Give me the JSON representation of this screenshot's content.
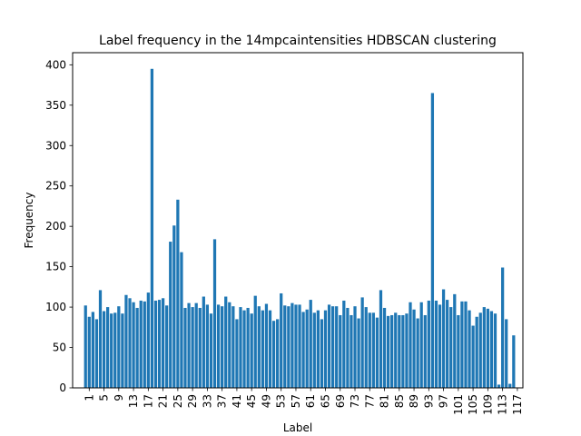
{
  "chart_data": {
    "type": "bar",
    "title": "Label frequency in the 14mpcaintensities HDBSCAN clustering",
    "xlabel": "Label",
    "ylabel": "Frequency",
    "bar_color": "#1f77b4",
    "categories": [
      0,
      1,
      2,
      3,
      4,
      5,
      6,
      7,
      8,
      9,
      10,
      11,
      12,
      13,
      14,
      15,
      16,
      17,
      18,
      19,
      20,
      21,
      22,
      23,
      24,
      25,
      26,
      27,
      28,
      29,
      30,
      31,
      32,
      33,
      34,
      35,
      36,
      37,
      38,
      39,
      40,
      41,
      42,
      43,
      44,
      45,
      46,
      47,
      48,
      49,
      50,
      51,
      52,
      53,
      54,
      55,
      56,
      57,
      58,
      59,
      60,
      61,
      62,
      63,
      64,
      65,
      66,
      67,
      68,
      69,
      70,
      71,
      72,
      73,
      74,
      75,
      76,
      77,
      78,
      79,
      80,
      81,
      82,
      83,
      84,
      85,
      86,
      87,
      88,
      89,
      90,
      91,
      92,
      93,
      94,
      95,
      96,
      97,
      98,
      99,
      100,
      101,
      102,
      103,
      104,
      105,
      106,
      107,
      108,
      109,
      110,
      111,
      112,
      113,
      114,
      115,
      116,
      117,
      118
    ],
    "values": [
      102,
      88,
      94,
      85,
      121,
      95,
      100,
      92,
      93,
      101,
      92,
      115,
      111,
      106,
      99,
      108,
      107,
      118,
      395,
      108,
      109,
      111,
      102,
      181,
      201,
      233,
      168,
      99,
      105,
      100,
      105,
      99,
      113,
      103,
      92,
      184,
      103,
      101,
      113,
      106,
      101,
      85,
      100,
      96,
      99,
      92,
      114,
      101,
      96,
      104,
      96,
      83,
      85,
      117,
      102,
      101,
      105,
      103,
      103,
      94,
      97,
      109,
      93,
      96,
      85,
      96,
      103,
      101,
      101,
      90,
      108,
      99,
      90,
      101,
      86,
      112,
      100,
      93,
      93,
      87,
      121,
      99,
      89,
      90,
      93,
      90,
      90,
      92,
      106,
      97,
      86,
      106,
      90,
      108,
      365,
      108,
      103,
      122,
      109,
      100,
      116,
      90,
      107,
      107,
      96,
      77,
      88,
      93,
      100,
      98,
      95,
      92,
      4,
      149,
      85,
      5,
      65,
      0,
      0
    ],
    "xticks": [
      1,
      5,
      9,
      13,
      17,
      21,
      25,
      29,
      33,
      37,
      41,
      45,
      49,
      53,
      57,
      61,
      65,
      69,
      73,
      77,
      81,
      85,
      89,
      93,
      97,
      101,
      105,
      109,
      113,
      117
    ],
    "yticks": [
      0,
      50,
      100,
      150,
      200,
      250,
      300,
      350,
      400
    ],
    "xlim": [
      -3.5,
      118.5
    ],
    "ylim": [
      0,
      415
    ],
    "grid": false,
    "legend": "none"
  }
}
